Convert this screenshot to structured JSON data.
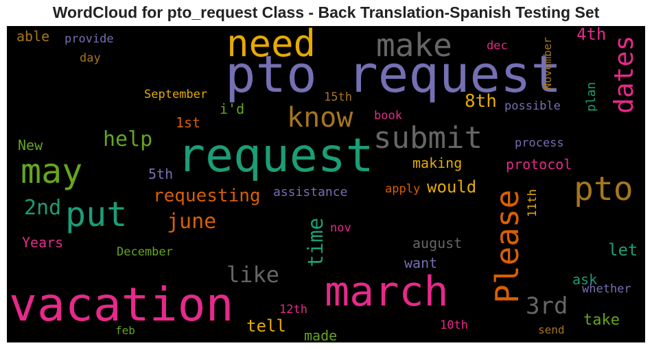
{
  "chart_data": {
    "type": "wordcloud",
    "title": "WordCloud for pto_request Class - Back Translation-Spanish Testing Set",
    "background": "#000000",
    "words": [
      {
        "text": "pto request",
        "color": "#7570b3"
      },
      {
        "text": "request",
        "color": "#1b9e77"
      },
      {
        "text": "vacation",
        "color": "#e7298a"
      },
      {
        "text": "march",
        "color": "#e7298a"
      },
      {
        "text": "need",
        "color": "#e6ab02"
      },
      {
        "text": "make",
        "color": "#666666"
      },
      {
        "text": "may",
        "color": "#66a61e"
      },
      {
        "text": "put",
        "color": "#1b9e77"
      },
      {
        "text": "pto",
        "color": "#a6761d"
      },
      {
        "text": "Please",
        "color": "#d95f02"
      },
      {
        "text": "submit",
        "color": "#666666"
      },
      {
        "text": "dates",
        "color": "#e7298a"
      },
      {
        "text": "know",
        "color": "#a6761d"
      },
      {
        "text": "time",
        "color": "#1b9e77"
      },
      {
        "text": "3rd",
        "color": "#666666"
      },
      {
        "text": "like",
        "color": "#666666"
      },
      {
        "text": "2nd",
        "color": "#1b9e77"
      },
      {
        "text": "june",
        "color": "#d95f02"
      },
      {
        "text": "help",
        "color": "#66a61e"
      },
      {
        "text": "requesting",
        "color": "#d95f02"
      },
      {
        "text": "8th",
        "color": "#e6ab02"
      },
      {
        "text": "4th",
        "color": "#e7298a"
      },
      {
        "text": "would",
        "color": "#e6ab02"
      },
      {
        "text": "tell",
        "color": "#e6ab02"
      },
      {
        "text": "let",
        "color": "#1b9e77"
      },
      {
        "text": "take",
        "color": "#66a61e"
      },
      {
        "text": "Years",
        "color": "#e7298a"
      },
      {
        "text": "making",
        "color": "#e6ab02"
      },
      {
        "text": "protocol",
        "color": "#e7298a"
      },
      {
        "text": "august",
        "color": "#666666"
      },
      {
        "text": "want",
        "color": "#7570b3"
      },
      {
        "text": "ask",
        "color": "#1b9e77"
      },
      {
        "text": "made",
        "color": "#66a61e"
      },
      {
        "text": "1st",
        "color": "#d95f02"
      },
      {
        "text": "5th",
        "color": "#7570b3"
      },
      {
        "text": "i'd",
        "color": "#66a61e"
      },
      {
        "text": "able",
        "color": "#a6761d"
      },
      {
        "text": "New",
        "color": "#66a61e"
      },
      {
        "text": "plan",
        "color": "#1b9e77"
      },
      {
        "text": "assistance",
        "color": "#7570b3"
      },
      {
        "text": "September",
        "color": "#e6ab02"
      },
      {
        "text": "December",
        "color": "#66a61e"
      },
      {
        "text": "provide",
        "color": "#7570b3"
      },
      {
        "text": "possible",
        "color": "#7570b3"
      },
      {
        "text": "process",
        "color": "#7570b3"
      },
      {
        "text": "whether",
        "color": "#7570b3"
      },
      {
        "text": "11th",
        "color": "#e6ab02"
      },
      {
        "text": "November",
        "color": "#a6761d"
      },
      {
        "text": "book",
        "color": "#e7298a"
      },
      {
        "text": "apply",
        "color": "#d95f02"
      },
      {
        "text": "12th",
        "color": "#e7298a"
      },
      {
        "text": "10th",
        "color": "#e7298a"
      },
      {
        "text": "15th",
        "color": "#a6761d"
      },
      {
        "text": "day",
        "color": "#a6761d"
      },
      {
        "text": "dec",
        "color": "#e7298a"
      },
      {
        "text": "nov",
        "color": "#e7298a"
      },
      {
        "text": "feb",
        "color": "#66a61e"
      },
      {
        "text": "send",
        "color": "#a6761d"
      }
    ]
  }
}
